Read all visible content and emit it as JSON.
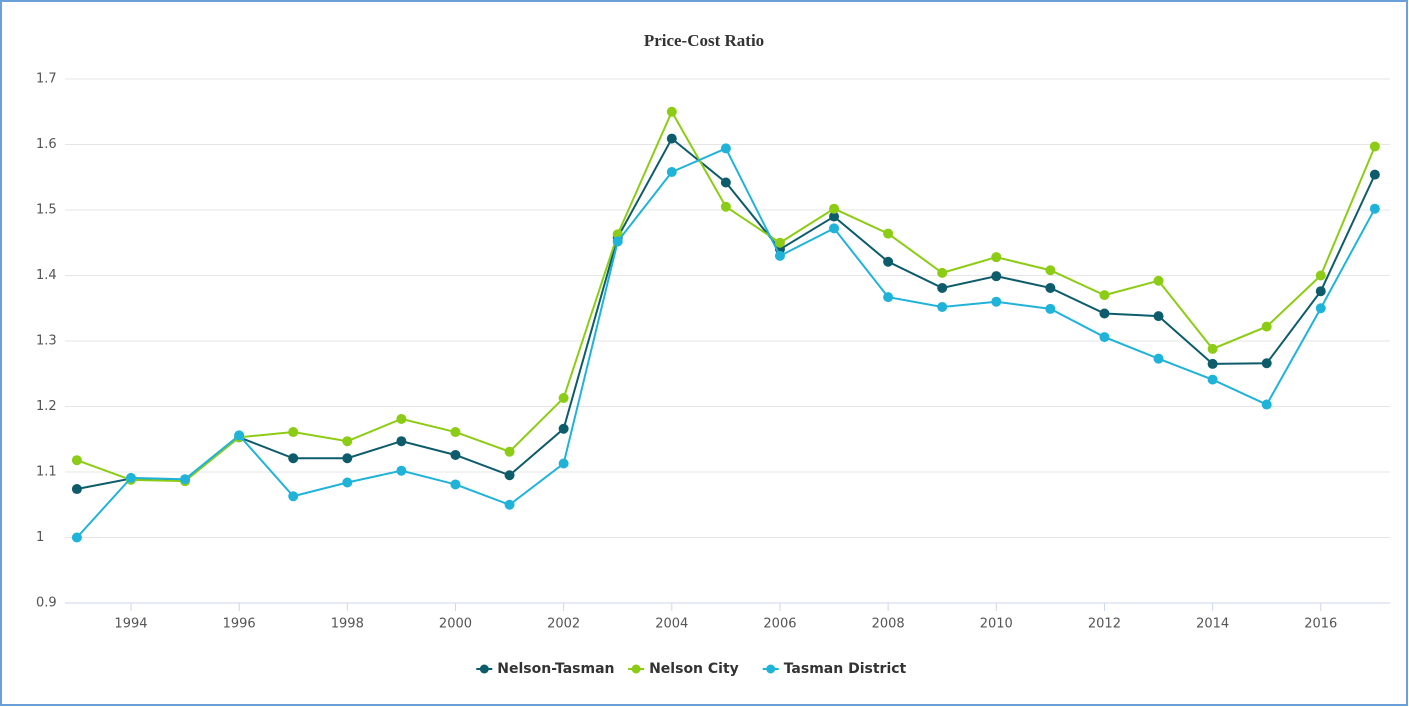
{
  "chart_data": {
    "type": "line",
    "title": "Price-Cost Ratio",
    "x": [
      1993,
      1994,
      1995,
      1996,
      1997,
      1998,
      1999,
      2000,
      2001,
      2002,
      2003,
      2004,
      2005,
      2006,
      2007,
      2008,
      2009,
      2010,
      2011,
      2012,
      2013,
      2014,
      2015,
      2016,
      2017
    ],
    "series": [
      {
        "name": "Nelson-Tasman",
        "color": "#0d5c6b",
        "values": [
          1.074,
          1.09,
          1.088,
          1.153,
          1.121,
          1.121,
          1.147,
          1.126,
          1.095,
          1.166,
          1.458,
          1.609,
          1.542,
          1.44,
          1.49,
          1.421,
          1.381,
          1.399,
          1.381,
          1.342,
          1.338,
          1.265,
          1.266,
          1.376,
          1.554
        ]
      },
      {
        "name": "Nelson City",
        "color": "#8dcc14",
        "values": [
          1.118,
          1.088,
          1.086,
          1.153,
          1.161,
          1.147,
          1.181,
          1.161,
          1.131,
          1.213,
          1.463,
          1.65,
          1.505,
          1.45,
          1.502,
          1.464,
          1.404,
          1.428,
          1.408,
          1.37,
          1.392,
          1.288,
          1.322,
          1.4,
          1.597
        ]
      },
      {
        "name": "Tasman District",
        "color": "#20b3d9",
        "values": [
          1.0,
          1.091,
          1.089,
          1.156,
          1.063,
          1.084,
          1.102,
          1.081,
          1.05,
          1.113,
          1.452,
          1.558,
          1.594,
          1.43,
          1.472,
          1.367,
          1.352,
          1.36,
          1.349,
          1.306,
          1.273,
          1.241,
          1.203,
          1.35,
          1.502
        ]
      }
    ],
    "xlim": [
      1992.78,
      2017.28
    ],
    "xticks": [
      1994,
      1996,
      1998,
      2000,
      2002,
      2004,
      2006,
      2008,
      2010,
      2012,
      2014,
      2016
    ],
    "ylim": [
      0.9,
      1.7
    ],
    "yticks": [
      0.9,
      1,
      1.1,
      1.2,
      1.3,
      1.4,
      1.5,
      1.6,
      1.7
    ],
    "grid": true,
    "legend": "bottom"
  }
}
